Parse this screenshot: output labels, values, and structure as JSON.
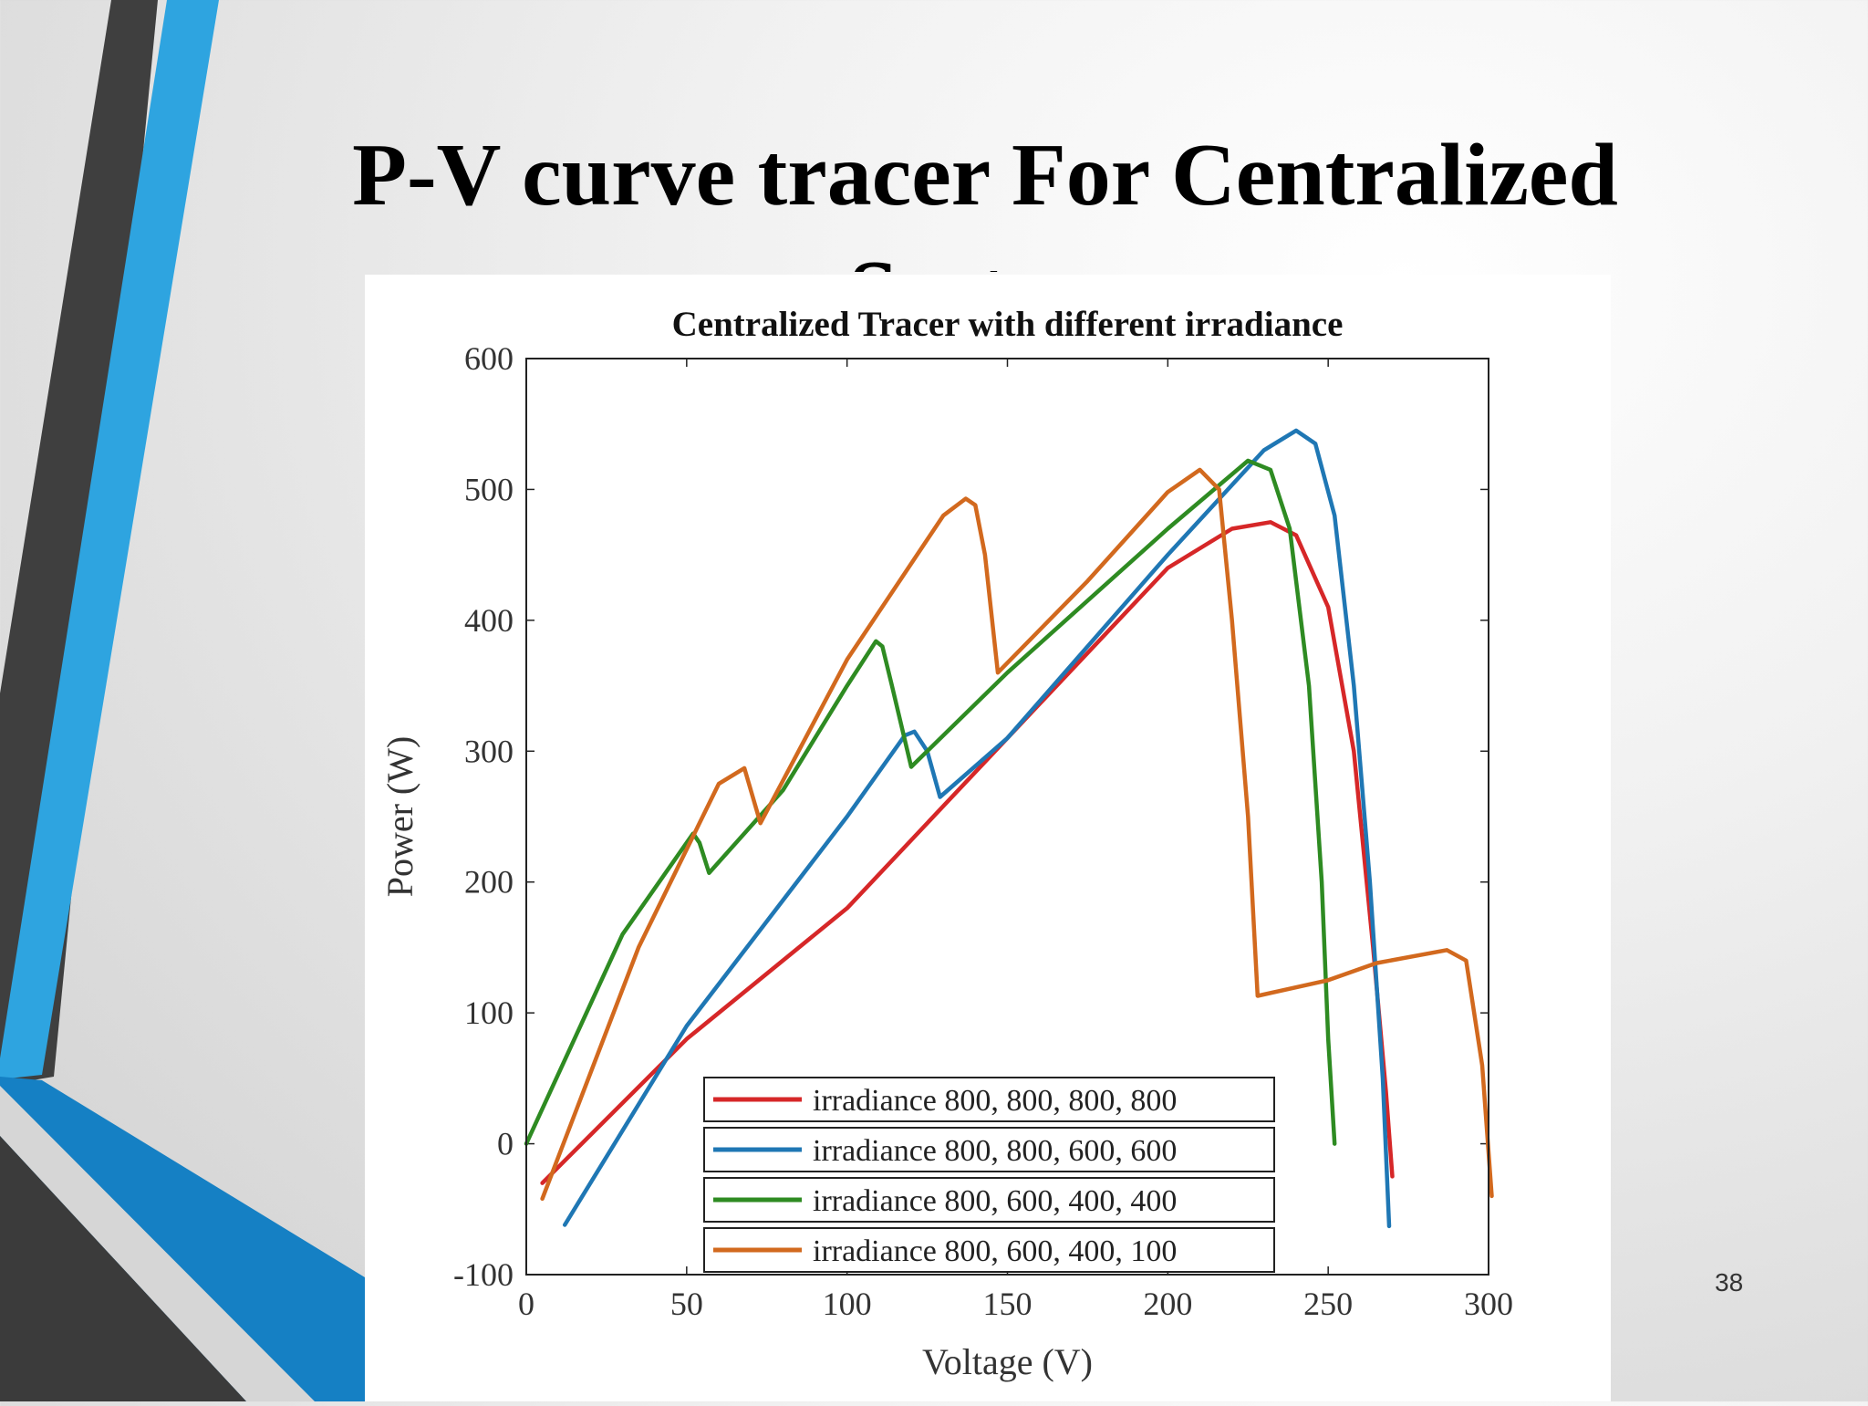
{
  "slide": {
    "title": "P-V curve tracer For Centralized System",
    "page_number": "38"
  },
  "colors": {
    "accent_blue": "#2ea4e0",
    "accent_blue_dark": "#1580c4",
    "accent_gray": "#3f3f3f"
  },
  "chart_data": {
    "type": "line",
    "title": "Centralized Tracer with different irradiance",
    "xlabel": "Voltage (V)",
    "ylabel": "Power (W)",
    "xlim": [
      0,
      300
    ],
    "ylim": [
      -100,
      600
    ],
    "xticks": [
      0,
      50,
      100,
      150,
      200,
      250,
      300
    ],
    "yticks": [
      -100,
      0,
      100,
      200,
      300,
      400,
      500,
      600
    ],
    "grid": false,
    "legend_position": "bottom-center",
    "series": [
      {
        "name": "irradiance 800, 800, 800, 800",
        "color": "#d62728",
        "x": [
          5,
          50,
          100,
          150,
          200,
          220,
          232,
          240,
          250,
          258,
          264,
          268,
          270
        ],
        "y": [
          -30,
          80,
          180,
          310,
          440,
          470,
          475,
          465,
          410,
          300,
          150,
          40,
          -25
        ]
      },
      {
        "name": "irradiance 800, 800, 600, 600",
        "color": "#1f77b4",
        "x": [
          12,
          50,
          100,
          118,
          121,
          125,
          129,
          150,
          200,
          230,
          240,
          246,
          252,
          258,
          263,
          267,
          269
        ],
        "y": [
          -62,
          90,
          250,
          312,
          315,
          300,
          265,
          310,
          450,
          530,
          545,
          535,
          480,
          350,
          200,
          50,
          -63
        ]
      },
      {
        "name": "irradiance 800, 600, 400, 400",
        "color": "#2e8b22",
        "x": [
          0,
          30,
          52,
          54,
          57,
          80,
          100,
          109,
          111,
          114,
          120,
          150,
          200,
          225,
          232,
          238,
          244,
          248,
          250,
          252
        ],
        "y": [
          0,
          160,
          237,
          230,
          207,
          270,
          350,
          384,
          380,
          350,
          288,
          360,
          470,
          522,
          515,
          470,
          350,
          200,
          80,
          0
        ]
      },
      {
        "name": "irradiance 800, 600, 400, 100",
        "color": "#d2691e",
        "x": [
          5,
          35,
          60,
          68,
          73,
          100,
          130,
          137,
          140,
          143,
          147,
          175,
          200,
          210,
          216,
          220,
          225,
          228,
          250,
          265,
          287,
          293,
          298,
          301
        ],
        "y": [
          -42,
          150,
          275,
          287,
          245,
          370,
          480,
          493,
          488,
          450,
          360,
          430,
          498,
          515,
          500,
          400,
          250,
          113,
          125,
          138,
          148,
          140,
          60,
          -40
        ]
      }
    ]
  }
}
